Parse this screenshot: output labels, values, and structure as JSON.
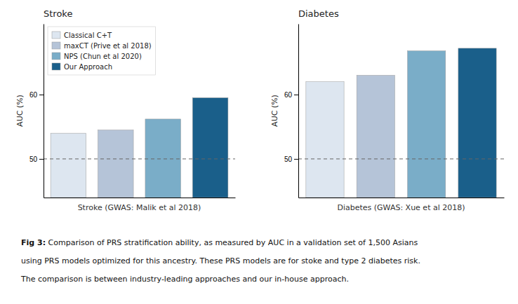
{
  "chart_data": [
    {
      "type": "bar",
      "title": "Stroke",
      "xlabel": "Stroke (GWAS: Malik et al 2018)",
      "ylabel": "AUC (%)",
      "categories": [
        "Classical C+T",
        "maxCT (Prive et al 2018)",
        "NPS (Chun et al 2020)",
        "Our Approach"
      ],
      "values": [
        54.0,
        54.5,
        56.2,
        59.5
      ],
      "colors": [
        "#dde6f0",
        "#b5c4d8",
        "#7aadc8",
        "#1a5f8a"
      ],
      "ylim": [
        44,
        71
      ],
      "yticks": [
        50,
        60
      ],
      "reference_line": 50,
      "grid": false,
      "legend": "upper left",
      "tick_labels": "y"
    },
    {
      "type": "bar",
      "title": "Diabetes",
      "xlabel": "Diabetes (GWAS: Xue et al 2018)",
      "ylabel": "AUC (%)",
      "categories": [
        "Classical C+T",
        "maxCT (Prive et al 2018)",
        "NPS (Chun et al 2020)",
        "Our Approach"
      ],
      "values": [
        62.0,
        63.0,
        66.8,
        67.2
      ],
      "colors": [
        "#dde6f0",
        "#b5c4d8",
        "#7aadc8",
        "#1a5f8a"
      ],
      "ylim": [
        44,
        71
      ],
      "yticks": [
        50,
        60
      ],
      "reference_line": 50,
      "grid": false,
      "tick_labels": "y"
    }
  ],
  "caption": {
    "label": "Fig 3:",
    "lines": [
      " Comparison of PRS stratification ability, as measured by AUC in a validation set of 1,500 Asians",
      "using PRS models optimized for this ancestry. These PRS models are for stoke and type 2 diabetes risk.",
      "The comparison is between industry-leading approaches and our in-house approach."
    ]
  }
}
